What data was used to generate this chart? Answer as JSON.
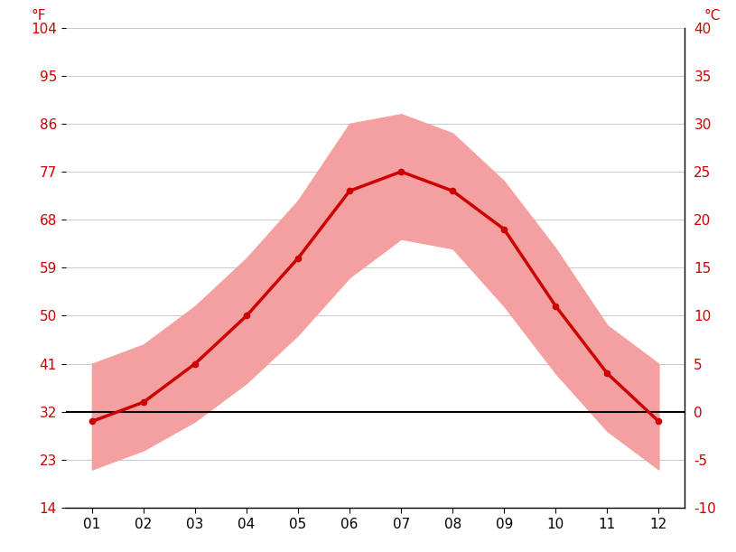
{
  "months": [
    1,
    2,
    3,
    4,
    5,
    6,
    7,
    8,
    9,
    10,
    11,
    12
  ],
  "month_labels": [
    "01",
    "02",
    "03",
    "04",
    "05",
    "06",
    "07",
    "08",
    "09",
    "10",
    "11",
    "12"
  ],
  "avg_high_c": [
    5,
    7,
    11,
    16,
    22,
    30,
    31,
    29,
    24,
    17,
    9,
    5
  ],
  "avg_low_c": [
    -6,
    -4,
    -1,
    3,
    8,
    14,
    18,
    17,
    11,
    4,
    -2,
    -6
  ],
  "mean_c": [
    -1,
    1,
    5,
    10,
    16,
    23,
    25,
    23,
    19,
    11,
    4,
    -1
  ],
  "ylim_c": [
    -10,
    40
  ],
  "yticks_c": [
    -10,
    -5,
    0,
    5,
    10,
    15,
    20,
    25,
    30,
    35,
    40
  ],
  "yticks_f": [
    14,
    23,
    32,
    41,
    50,
    59,
    68,
    77,
    86,
    95,
    104
  ],
  "band_color": "#f5a0a0",
  "line_color": "#cc0000",
  "zero_line_color": "#000000",
  "grid_color": "#cccccc",
  "tick_label_color": "#cc0000",
  "background_color": "#ffffff",
  "figsize": [
    8.15,
    6.11
  ],
  "dpi": 100
}
